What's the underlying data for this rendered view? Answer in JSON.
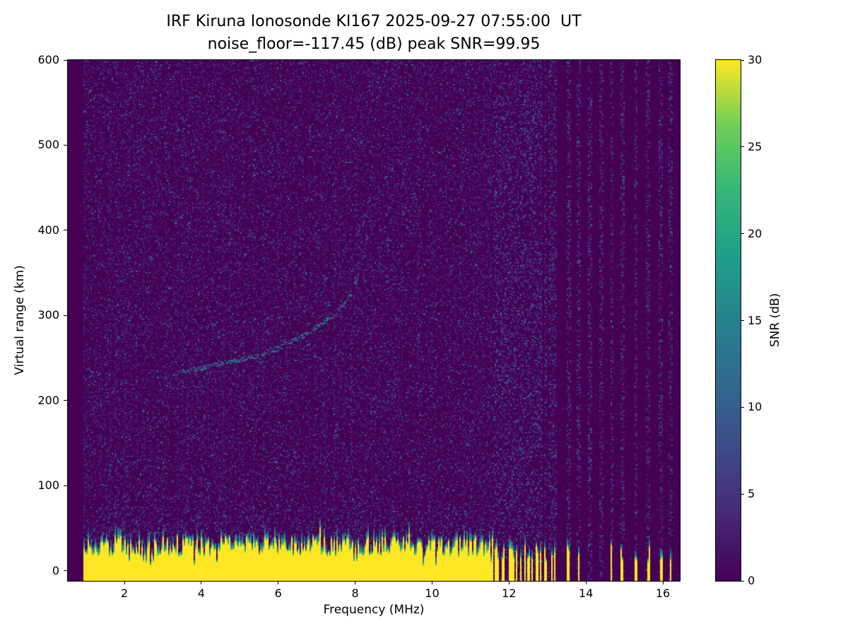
{
  "chart_data": {
    "type": "heatmap",
    "title": "IRF Kiruna Ionosonde KI167 2025-09-27 07:55:00  UT",
    "subtitle": "noise_floor=-117.45 (dB) peak SNR=99.95",
    "xlabel": "Frequency (MHz)",
    "ylabel": "Virtual range (km)",
    "x_range": [
      0.53,
      16.44
    ],
    "y_range": [
      -12,
      600
    ],
    "x_ticks": [
      2,
      4,
      6,
      8,
      10,
      12,
      14,
      16
    ],
    "y_ticks": [
      0,
      100,
      200,
      300,
      400,
      500,
      600
    ],
    "grid": false,
    "colormap": "viridis",
    "colorbar": {
      "label": "SNR (dB)",
      "range": [
        0,
        30
      ],
      "ticks": [
        0,
        5,
        10,
        15,
        20,
        25,
        30
      ]
    },
    "noise_floor_db": -117.45,
    "peak_snr_db": 99.95,
    "noise": {
      "seed": 167,
      "f_start": 0.95,
      "f_quiet_above": 11.58
    },
    "ground_pulse": {
      "top_km_min": 16,
      "top_km_max": 40,
      "snr_db": 30
    },
    "interference_stripes_mhz": [
      11.65,
      11.72,
      11.8,
      11.88,
      11.96,
      12.04,
      12.12,
      12.22,
      12.32,
      12.42,
      12.52,
      12.62,
      12.72,
      12.82,
      12.95,
      13.08,
      13.2,
      13.55,
      13.82,
      14.12,
      14.4,
      14.68,
      14.95,
      15.3,
      15.62,
      15.95,
      16.2
    ],
    "echo_trace_points": [
      [
        3.38,
        232
      ],
      [
        3.7,
        235
      ],
      [
        4.0,
        238
      ],
      [
        4.3,
        241
      ],
      [
        4.6,
        244
      ],
      [
        4.9,
        247
      ],
      [
        5.2,
        250
      ],
      [
        5.5,
        253
      ],
      [
        5.8,
        257
      ],
      [
        6.0,
        261
      ],
      [
        6.2,
        267
      ],
      [
        6.4,
        271
      ],
      [
        6.6,
        275
      ],
      [
        6.8,
        280
      ],
      [
        7.0,
        286
      ],
      [
        7.2,
        293
      ],
      [
        7.5,
        303
      ],
      [
        7.7,
        313
      ],
      [
        7.9,
        327
      ],
      [
        8.05,
        342
      ],
      [
        8.18,
        360
      ],
      [
        8.27,
        380
      ],
      [
        8.33,
        400
      ]
    ],
    "echo_scatter_points": [
      [
        6.55,
        298
      ],
      [
        6.8,
        310
      ],
      [
        6.95,
        322
      ],
      [
        7.1,
        333
      ],
      [
        7.25,
        344
      ],
      [
        7.4,
        352
      ],
      [
        7.55,
        362
      ],
      [
        7.7,
        372
      ],
      [
        7.85,
        383
      ],
      [
        7.95,
        392
      ],
      [
        8.1,
        402
      ],
      [
        8.2,
        412
      ],
      [
        8.3,
        420
      ],
      [
        7.3,
        315
      ],
      [
        7.6,
        340
      ],
      [
        8.0,
        370
      ],
      [
        8.4,
        408
      ],
      [
        8.45,
        350
      ]
    ]
  }
}
